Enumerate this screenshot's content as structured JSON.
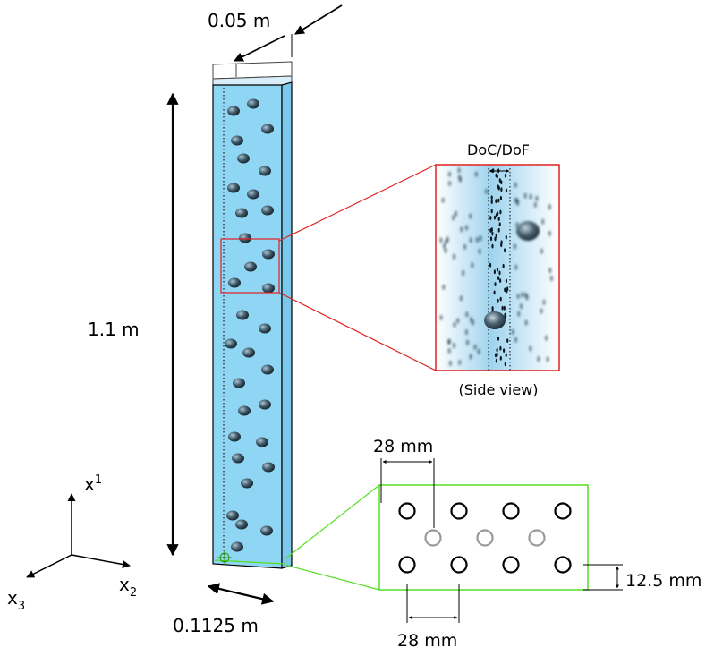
{
  "labels": {
    "depth": "0.05 m",
    "height": "1.1 m",
    "width": "0.1125 m",
    "doc_dof": "DoC/DoF",
    "side_view": "(Side view)",
    "spacing_top": "28 mm",
    "spacing_bottom": "28 mm",
    "row_offset": "12.5 mm"
  },
  "axes": {
    "x1": "x",
    "x1_sub": "1",
    "x2": "x",
    "x2_sub": "2",
    "x3": "x",
    "x3_sub": "3"
  },
  "colors": {
    "water": "#8fd6f5",
    "zoom_frame": "#e02020",
    "nozzle_frame": "#55dd22",
    "bubble": "#3a4a55",
    "nozzle_gray": "#999999"
  }
}
